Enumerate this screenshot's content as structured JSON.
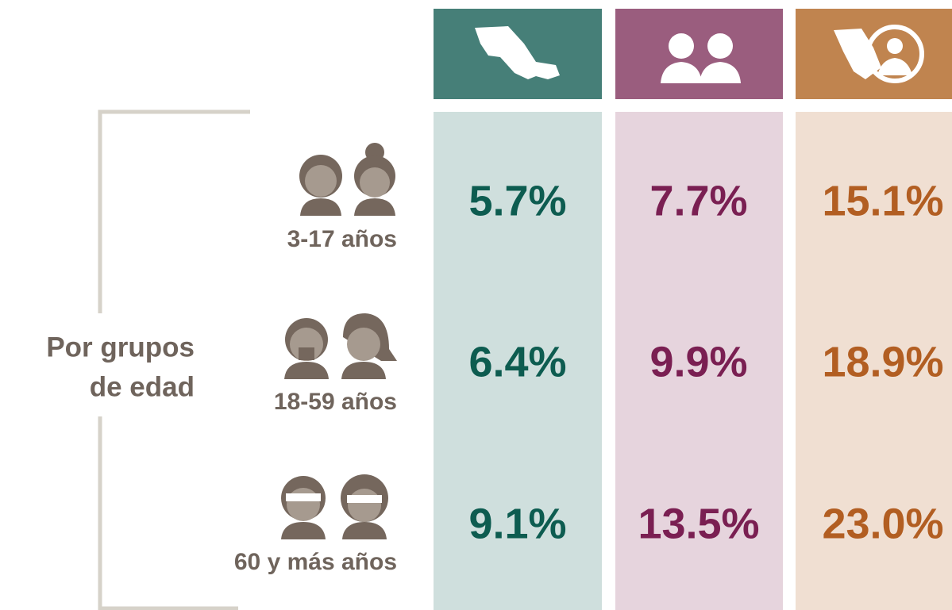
{
  "group_label": [
    "Por grupos",
    "de edad"
  ],
  "table": {
    "rows": [
      {
        "label": "3-17 años",
        "cells": [
          "5.7%",
          "7.7%",
          "15.1%"
        ]
      },
      {
        "label": "18-59 años",
        "cells": [
          "6.4%",
          "9.9%",
          "18.9%"
        ]
      },
      {
        "label": "60 y más años",
        "cells": [
          "9.1%",
          "13.5%",
          "23.0%"
        ]
      }
    ]
  }
}
